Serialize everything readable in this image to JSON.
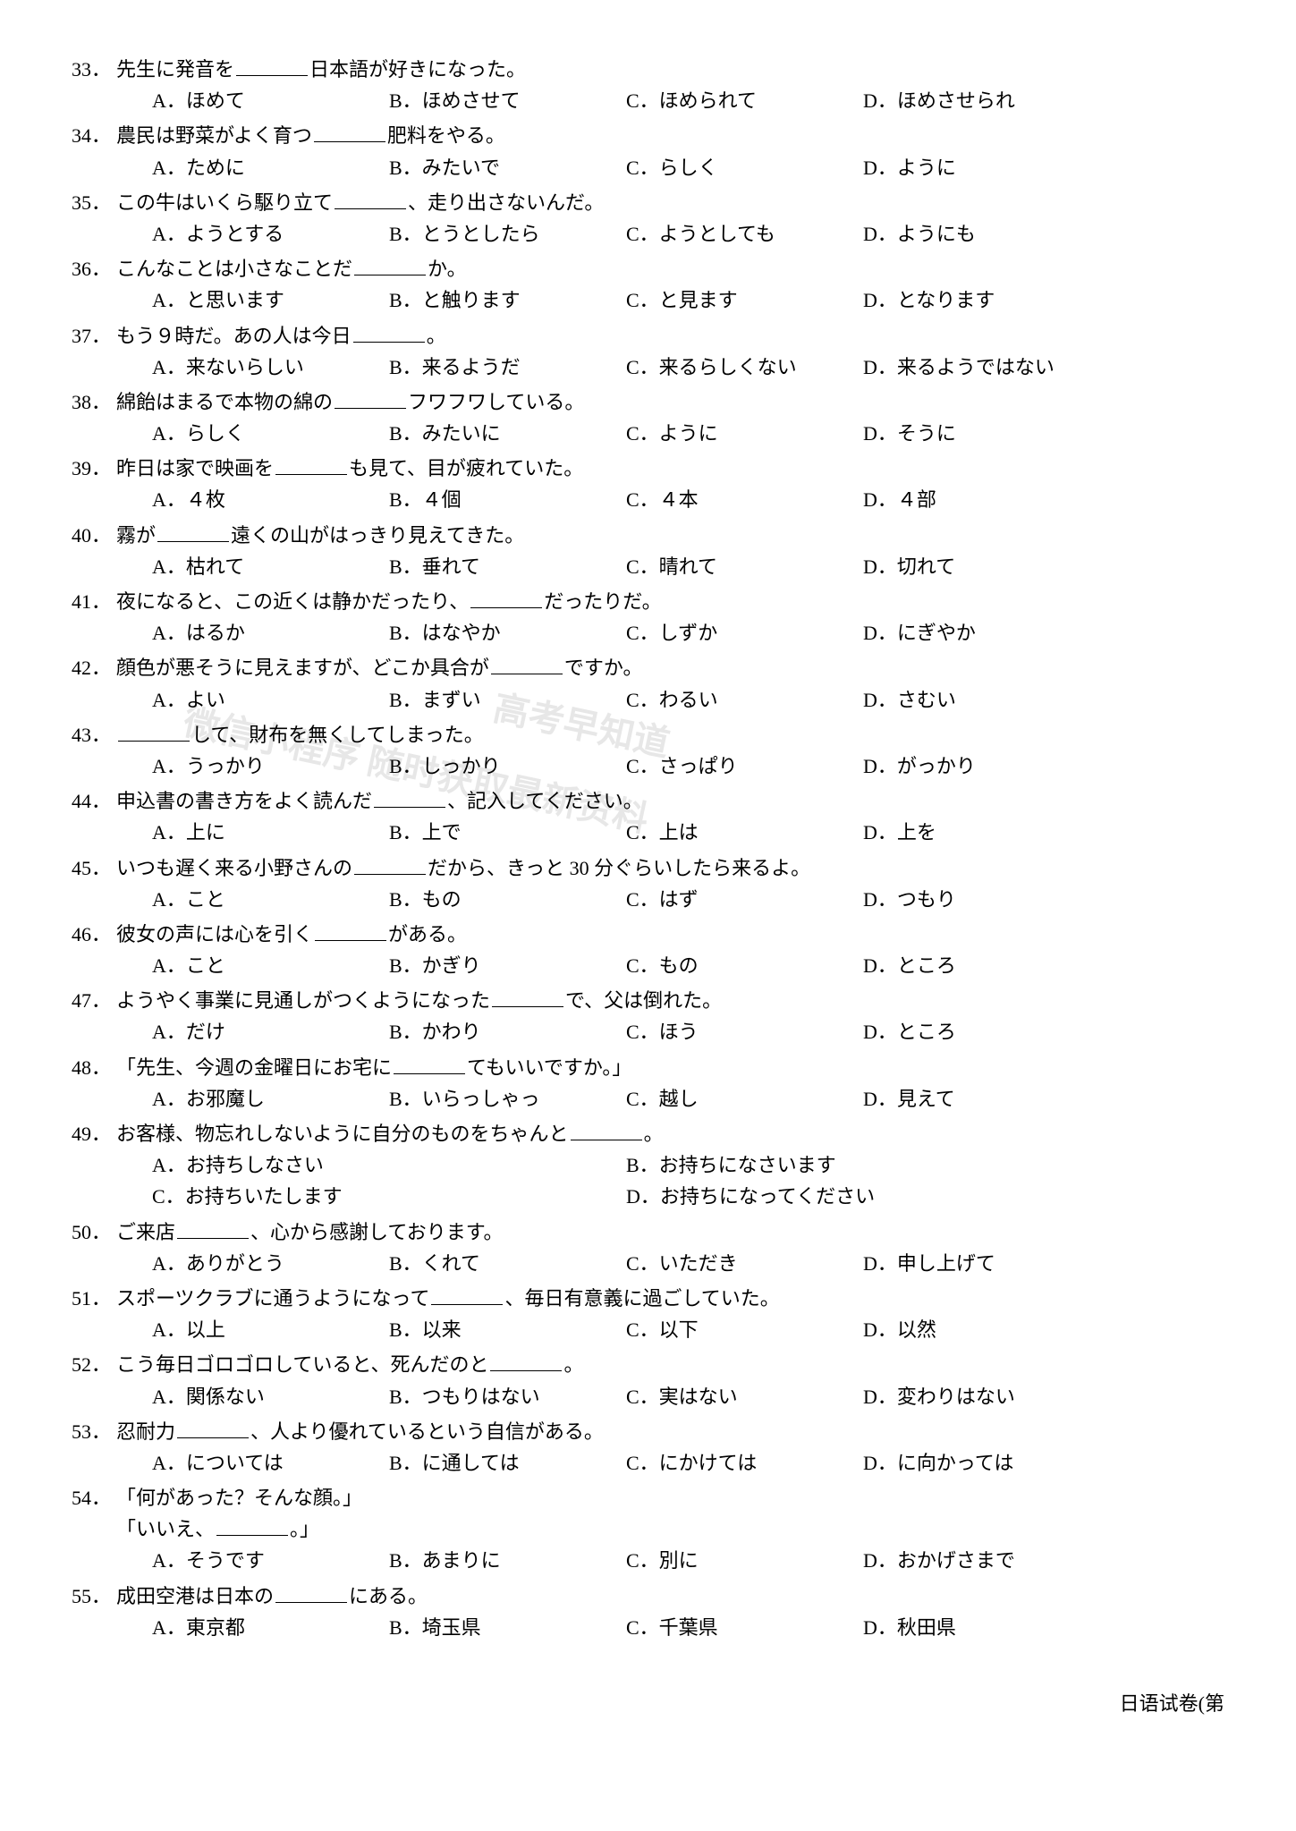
{
  "footer": "日语试卷(第",
  "watermark1": "高考早知道",
  "watermark2": "微信小程序 随时获取最新资料",
  "questions": [
    {
      "num": "33．",
      "parts": [
        "先生に発音を",
        "日本語が好きになった。"
      ],
      "opts": [
        "A．ほめて",
        "B．ほめさせて",
        "C．ほめられて",
        "D．ほめさせられ"
      ]
    },
    {
      "num": "34．",
      "parts": [
        "農民は野菜がよく育つ",
        "肥料をやる。"
      ],
      "opts": [
        "A．ために",
        "B．みたいで",
        "C．らしく",
        "D．ように"
      ]
    },
    {
      "num": "35．",
      "parts": [
        "この牛はいくら駆り立て",
        "、走り出さないんだ。"
      ],
      "opts": [
        "A．ようとする",
        "B．とうとしたら",
        "C．ようとしても",
        "D．ようにも"
      ]
    },
    {
      "num": "36．",
      "parts": [
        "こんなことは小さなことだ",
        "か。"
      ],
      "opts": [
        "A．と思います",
        "B．と触ります",
        "C．と見ます",
        "D．となります"
      ]
    },
    {
      "num": "37．",
      "parts": [
        "もう９時だ。あの人は今日",
        "。"
      ],
      "opts": [
        "A．来ないらしい",
        "B．来るようだ",
        "C．来るらしくない",
        "D．来るようではない"
      ]
    },
    {
      "num": "38．",
      "parts": [
        "綿飴はまるで本物の綿の",
        "フワフワしている。"
      ],
      "opts": [
        "A．らしく",
        "B．みたいに",
        "C．ように",
        "D．そうに"
      ]
    },
    {
      "num": "39．",
      "parts": [
        "昨日は家で映画を",
        "も見て、目が疲れていた。"
      ],
      "opts": [
        "A．４枚",
        "B．４個",
        "C．４本",
        "D．４部"
      ]
    },
    {
      "num": "40．",
      "parts": [
        "霧が",
        "遠くの山がはっきり見えてきた。"
      ],
      "opts": [
        "A．枯れて",
        "B．垂れて",
        "C．晴れて",
        "D．切れて"
      ]
    },
    {
      "num": "41．",
      "parts": [
        "夜になると、この近くは静かだったり、",
        "だったりだ。"
      ],
      "opts": [
        "A．はるか",
        "B．はなやか",
        "C．しずか",
        "D．にぎやか"
      ]
    },
    {
      "num": "42．",
      "parts": [
        "顔色が悪そうに見えますが、どこか具合が",
        "ですか。"
      ],
      "opts": [
        "A．よい",
        "B．まずい",
        "C．わるい",
        "D．さむい"
      ]
    },
    {
      "num": "43．",
      "parts": [
        "",
        "して、財布を無くしてしまった。"
      ],
      "opts": [
        "A．うっかり",
        "B．しっかり",
        "C．さっぱり",
        "D．がっかり"
      ]
    },
    {
      "num": "44．",
      "parts": [
        "申込書の書き方をよく読んだ",
        "、記入してください。"
      ],
      "opts": [
        "A．上に",
        "B．上で",
        "C．上は",
        "D．上を"
      ]
    },
    {
      "num": "45．",
      "parts": [
        "いつも遅く来る小野さんの",
        "だから、きっと 30 分ぐらいしたら来るよ。"
      ],
      "opts": [
        "A．こと",
        "B．もの",
        "C．はず",
        "D．つもり"
      ]
    },
    {
      "num": "46．",
      "parts": [
        "彼女の声には心を引く",
        "がある。"
      ],
      "opts": [
        "A．こと",
        "B．かぎり",
        "C．もの",
        "D．ところ"
      ]
    },
    {
      "num": "47．",
      "parts": [
        "ようやく事業に見通しがつくようになった",
        "で、父は倒れた。"
      ],
      "opts": [
        "A．だけ",
        "B．かわり",
        "C．ほう",
        "D．ところ"
      ]
    },
    {
      "num": "48．",
      "parts": [
        "「先生、今週の金曜日にお宅に",
        "てもいいですか。」"
      ],
      "opts": [
        "A．お邪魔し",
        "B．いらっしゃっ",
        "C．越し",
        "D．見えて"
      ]
    },
    {
      "num": "49．",
      "parts": [
        "お客様、物忘れしないように自分のものをちゃんと",
        "。"
      ],
      "twoCol": true,
      "opts": [
        "A．お持ちしなさい",
        "B．お持ちになさいます",
        "C．お持ちいたします",
        "D．お持ちになってください"
      ]
    },
    {
      "num": "50．",
      "parts": [
        "ご来店",
        "、心から感謝しております。"
      ],
      "opts": [
        "A．ありがとう",
        "B．くれて",
        "C．いただき",
        "D．申し上げて"
      ]
    },
    {
      "num": "51．",
      "parts": [
        "スポーツクラブに通うようになって",
        "、毎日有意義に過ごしていた。"
      ],
      "opts": [
        "A．以上",
        "B．以来",
        "C．以下",
        "D．以然"
      ]
    },
    {
      "num": "52．",
      "parts": [
        "こう毎日ゴロゴロしていると、死んだのと",
        "。"
      ],
      "opts": [
        "A．関係ない",
        "B．つもりはない",
        "C．実はない",
        "D．変わりはない"
      ]
    },
    {
      "num": "53．",
      "parts": [
        "忍耐力",
        "、人より優れているという自信がある。"
      ],
      "opts": [
        "A．については",
        "B．に通しては",
        "C．にかけては",
        "D．に向かっては"
      ]
    },
    {
      "num": "54．",
      "parts": [
        "「何があった？そんな顔。」"
      ],
      "extra": [
        "「いいえ、",
        "。」"
      ],
      "opts": [
        "A．そうです",
        "B．あまりに",
        "C．別に",
        "D．おかげさまで"
      ]
    },
    {
      "num": "55．",
      "parts": [
        "成田空港は日本の",
        "にある。"
      ],
      "opts": [
        "A．東京都",
        "B．埼玉県",
        "C．千葉県",
        "D．秋田県"
      ]
    }
  ]
}
